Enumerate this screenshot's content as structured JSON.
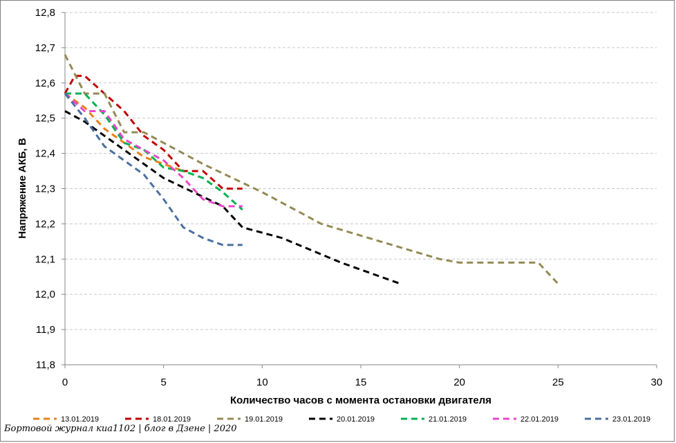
{
  "footer": "Бортовой журнал киа1102 | блог в Дзене | 2020",
  "chart_data": {
    "type": "line",
    "xlabel": "Количество часов с момента остановки двигателя",
    "ylabel": "Напряжение АКБ, В",
    "xlim": [
      0,
      30
    ],
    "ylim": [
      11.8,
      12.8
    ],
    "xticks": [
      0,
      5,
      10,
      15,
      20,
      25,
      30
    ],
    "xtick_labels": [
      "0",
      "5",
      "10",
      "15",
      "20",
      "25",
      "30"
    ],
    "yticks": [
      11.8,
      11.9,
      12.0,
      12.1,
      12.2,
      12.3,
      12.4,
      12.5,
      12.6,
      12.7,
      12.8
    ],
    "ytick_labels": [
      "11,8",
      "11,9",
      "12,0",
      "12,1",
      "12,2",
      "12,3",
      "12,4",
      "12,5",
      "12,6",
      "12,7",
      "12,8"
    ],
    "grid": "horizontal",
    "legend": "bottom",
    "line_style": "dashed",
    "series": [
      {
        "name": "13.01.2019",
        "color": "#E97F1A",
        "x": [
          0,
          1,
          2,
          3,
          4,
          5,
          6
        ],
        "y": [
          12.57,
          12.53,
          12.47,
          12.43,
          12.39,
          12.37,
          12.35
        ]
      },
      {
        "name": "18.01.2019",
        "color": "#C00000",
        "x": [
          0,
          0.5,
          1,
          2,
          3,
          4,
          5,
          6,
          7,
          8,
          9
        ],
        "y": [
          12.57,
          12.62,
          12.62,
          12.57,
          12.52,
          12.45,
          12.41,
          12.35,
          12.35,
          12.3,
          12.3
        ]
      },
      {
        "name": "19.01.2019",
        "color": "#948A54",
        "x": [
          0,
          1,
          2,
          3,
          4,
          7,
          10,
          13,
          16,
          19,
          20,
          24,
          25
        ],
        "y": [
          12.68,
          12.57,
          12.57,
          12.46,
          12.46,
          12.37,
          12.29,
          12.2,
          12.15,
          12.1,
          12.09,
          12.09,
          12.03
        ]
      },
      {
        "name": "20.01.2019",
        "color": "#000000",
        "x": [
          0,
          1,
          3,
          5,
          8,
          9,
          11,
          14,
          17
        ],
        "y": [
          12.52,
          12.49,
          12.41,
          12.33,
          12.25,
          12.19,
          12.16,
          12.09,
          12.03
        ]
      },
      {
        "name": "21.01.2019",
        "color": "#00B050",
        "x": [
          0,
          1,
          2,
          3,
          4,
          5,
          6,
          7,
          8,
          9
        ],
        "y": [
          12.57,
          12.57,
          12.51,
          12.43,
          12.41,
          12.36,
          12.35,
          12.33,
          12.29,
          12.24
        ]
      },
      {
        "name": "22.01.2019",
        "color": "#E946C8",
        "x": [
          0,
          1,
          2,
          3,
          4,
          5,
          6,
          7,
          8,
          9
        ],
        "y": [
          12.57,
          12.52,
          12.52,
          12.44,
          12.41,
          12.38,
          12.33,
          12.27,
          12.25,
          12.25
        ]
      },
      {
        "name": "23.01.2019",
        "color": "#4A6FA0",
        "x": [
          0,
          1,
          2,
          3,
          4,
          5,
          6,
          7,
          8,
          9
        ],
        "y": [
          12.57,
          12.5,
          12.42,
          12.38,
          12.34,
          12.27,
          12.19,
          12.16,
          12.14,
          12.14
        ]
      }
    ]
  }
}
